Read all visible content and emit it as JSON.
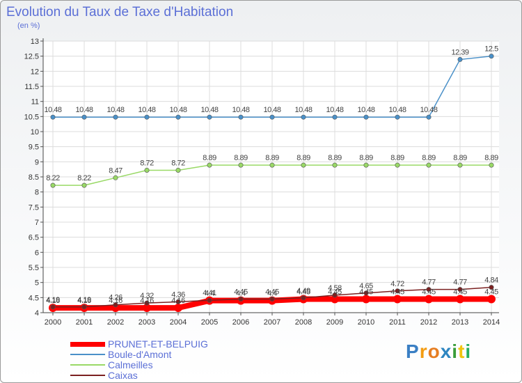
{
  "chart_data": {
    "type": "line",
    "title": "Evolution du Taux de Taxe d'Habitation",
    "subtitle": "(en %)",
    "x": [
      "2000",
      "2001",
      "2002",
      "2003",
      "2004",
      "2005",
      "2006",
      "2007",
      "2008",
      "2009",
      "2010",
      "2011",
      "2012",
      "2013",
      "2014"
    ],
    "ylim": [
      4,
      13
    ],
    "ytick_step": 0.5,
    "grid": true,
    "series": [
      {
        "name": "PRUNET-ET-BELPUIG",
        "color": "#ff0000",
        "values": [
          4.16,
          4.16,
          4.16,
          4.16,
          4.16,
          4.4,
          4.4,
          4.4,
          4.45,
          4.45,
          4.45,
          4.45,
          4.45,
          4.45,
          4.45
        ],
        "labels": [
          "4.16",
          "4.16",
          "4.16",
          "4.16",
          "4.16",
          "4.4",
          "4.4",
          "4.4",
          "4.45",
          "4.45",
          "4.45",
          "4.45",
          "4.45",
          "4.45",
          "4.45"
        ]
      },
      {
        "name": "Boule-d'Amont",
        "color": "#4a90c8",
        "values": [
          10.48,
          10.48,
          10.48,
          10.48,
          10.48,
          10.48,
          10.48,
          10.48,
          10.48,
          10.48,
          10.48,
          10.48,
          10.48,
          12.39,
          12.5
        ],
        "labels": [
          "10.48",
          "10.48",
          "10.48",
          "10.48",
          "10.48",
          "10.48",
          "10.48",
          "10.48",
          "10.48",
          "10.48",
          "10.48",
          "10.48",
          "10.48",
          "12.39",
          "12.5"
        ]
      },
      {
        "name": "Calmeilles",
        "color": "#99d966",
        "values": [
          8.22,
          8.22,
          8.47,
          8.72,
          8.72,
          8.89,
          8.89,
          8.89,
          8.89,
          8.89,
          8.89,
          8.89,
          8.89,
          8.89,
          8.89
        ],
        "labels": [
          "8.22",
          "8.22",
          "8.47",
          "8.72",
          "8.72",
          "8.89",
          "8.89",
          "8.89",
          "8.89",
          "8.89",
          "8.89",
          "8.89",
          "8.89",
          "8.89",
          "8.89"
        ]
      },
      {
        "name": "Caixas",
        "color": "#7b2020",
        "values": [
          4.19,
          4.19,
          4.26,
          4.32,
          4.36,
          4.41,
          4.45,
          4.45,
          4.49,
          4.58,
          4.65,
          4.72,
          4.77,
          4.77,
          4.84
        ],
        "labels": [
          "4.19",
          "4.19",
          "4.26",
          "4.32",
          "4.36",
          "4.41",
          "4.45",
          "4.45",
          "4.49",
          "4.58",
          "4.65",
          "4.72",
          "4.77",
          "4.77",
          "4.84"
        ]
      }
    ]
  },
  "legend": [
    {
      "label": "PRUNET-ET-BELPUIG",
      "color": "#ff0000"
    },
    {
      "label": "Boule-d'Amont",
      "color": "#4a90c8"
    },
    {
      "label": "Calmeilles",
      "color": "#99d966"
    },
    {
      "label": "Caixas",
      "color": "#7b2020"
    }
  ],
  "logo": {
    "letters": [
      "P",
      "r",
      "o",
      "x",
      "i",
      "t",
      "i"
    ],
    "colors": [
      "#3a7fc4",
      "#f39c12",
      "#e67e22",
      "#2e86c1",
      "#3a9d3a",
      "#f1c40f",
      "#27ae60"
    ]
  }
}
